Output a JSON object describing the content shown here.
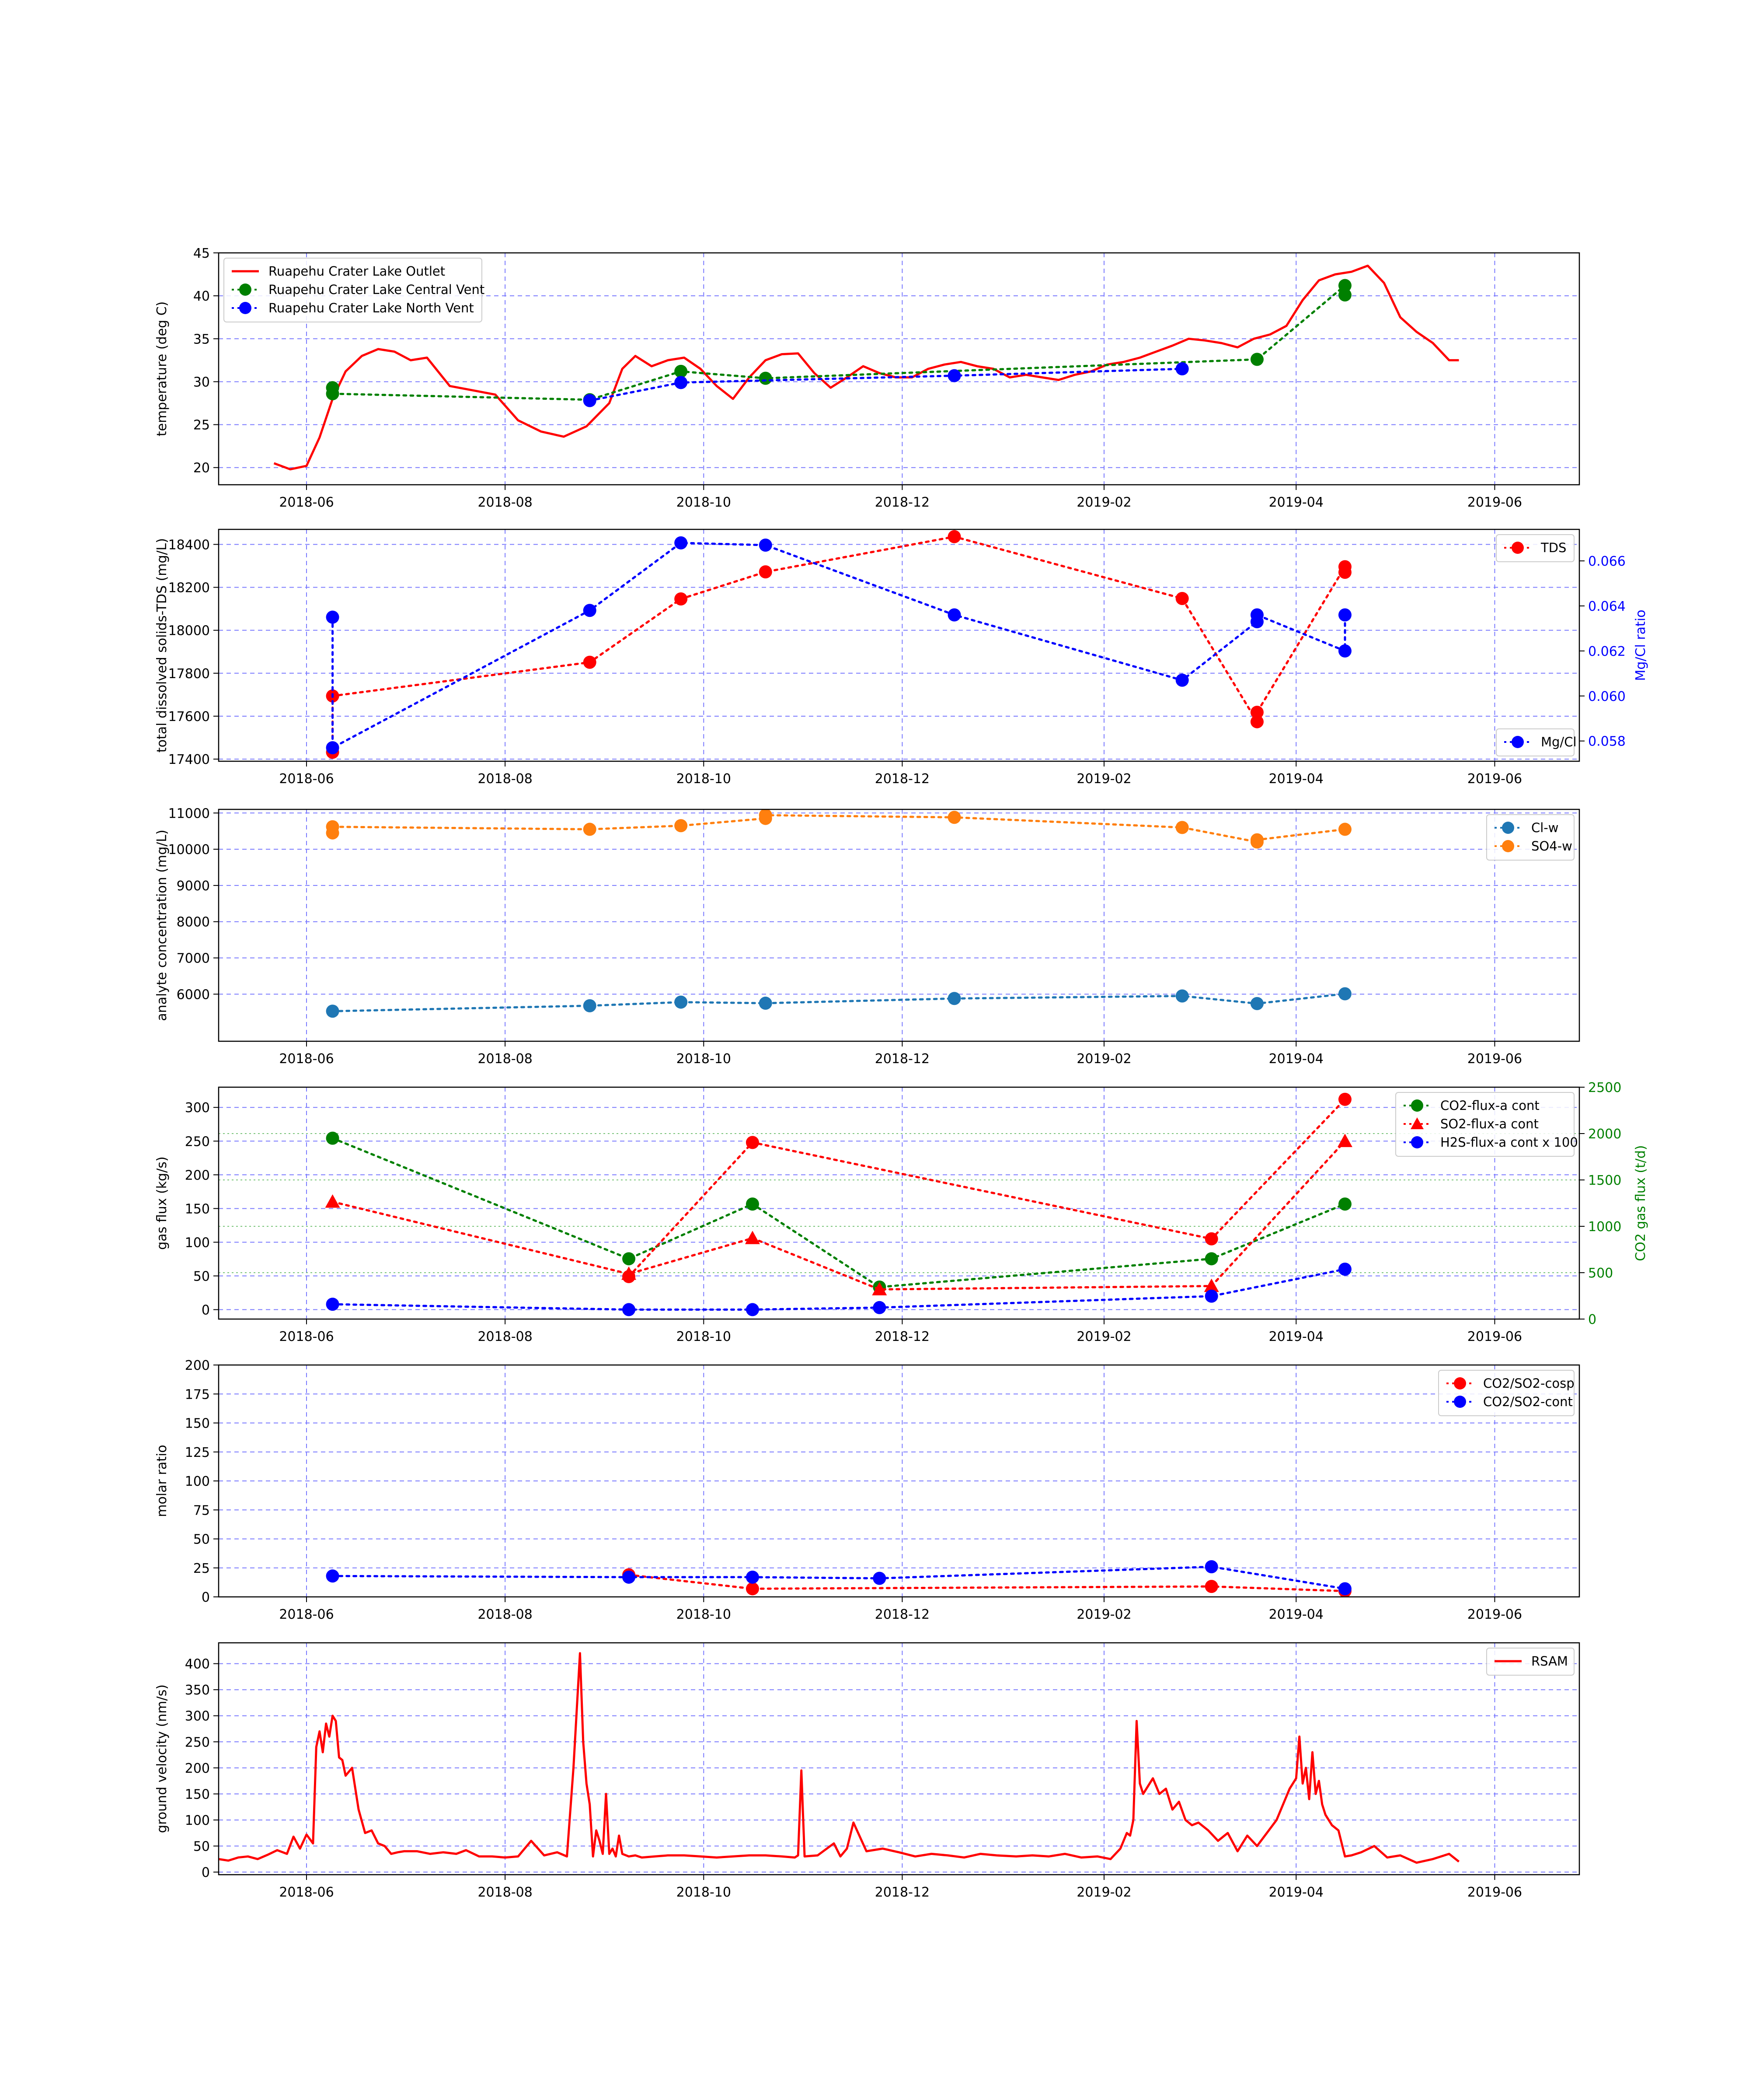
{
  "figure": {
    "x_ticks": [
      "2018-06",
      "2018-08",
      "2018-10",
      "2018-12",
      "2019-02",
      "2019-04",
      "2019-06"
    ]
  },
  "chart_data": [
    {
      "type": "line",
      "ylabel": "temperature (deg C)",
      "ylim": [
        18,
        45
      ],
      "yticks": [
        20,
        25,
        30,
        35,
        40,
        45
      ],
      "xlim": [
        "2018-05-05",
        "2019-06-27"
      ],
      "grid": true,
      "legend": "top-left",
      "series": [
        {
          "name": "Ruapehu Crater Lake Outlet",
          "style": "line",
          "color": "#ff0000",
          "x": [
            "2018-05-22",
            "2018-05-27",
            "2018-06-01",
            "2018-06-05",
            "2018-06-09",
            "2018-06-13",
            "2018-06-18",
            "2018-06-23",
            "2018-06-28",
            "2018-07-03",
            "2018-07-08",
            "2018-07-15",
            "2018-07-22",
            "2018-07-29",
            "2018-08-05",
            "2018-08-12",
            "2018-08-19",
            "2018-08-26",
            "2018-09-02",
            "2018-09-06",
            "2018-09-10",
            "2018-09-15",
            "2018-09-20",
            "2018-09-25",
            "2018-09-30",
            "2018-10-05",
            "2018-10-10",
            "2018-10-15",
            "2018-10-20",
            "2018-10-25",
            "2018-10-30",
            "2018-11-04",
            "2018-11-09",
            "2018-11-14",
            "2018-11-19",
            "2018-11-24",
            "2018-11-29",
            "2018-12-04",
            "2018-12-09",
            "2018-12-14",
            "2018-12-19",
            "2018-12-24",
            "2018-12-29",
            "2019-01-03",
            "2019-01-08",
            "2019-01-13",
            "2019-01-18",
            "2019-01-23",
            "2019-01-28",
            "2019-02-02",
            "2019-02-07",
            "2019-02-12",
            "2019-02-17",
            "2019-02-22",
            "2019-02-27",
            "2019-03-04",
            "2019-03-09",
            "2019-03-14",
            "2019-03-19",
            "2019-03-24",
            "2019-03-29",
            "2019-04-03",
            "2019-04-08",
            "2019-04-13",
            "2019-04-18",
            "2019-04-23",
            "2019-04-28",
            "2019-05-03",
            "2019-05-08",
            "2019-05-13",
            "2019-05-18",
            "2019-05-21"
          ],
          "y": [
            20.5,
            19.8,
            20.2,
            23.5,
            28.0,
            31.2,
            33.0,
            33.8,
            33.5,
            32.5,
            32.8,
            29.5,
            29.0,
            28.5,
            25.5,
            24.2,
            23.6,
            24.8,
            27.5,
            31.5,
            33.0,
            31.8,
            32.5,
            32.8,
            31.5,
            29.5,
            28.0,
            30.5,
            32.5,
            33.2,
            33.3,
            31.0,
            29.3,
            30.5,
            31.8,
            31.0,
            30.5,
            30.5,
            31.5,
            32.0,
            32.3,
            31.8,
            31.5,
            30.5,
            30.8,
            30.5,
            30.2,
            30.8,
            31.2,
            32.0,
            32.3,
            32.8,
            33.5,
            34.2,
            35.0,
            34.8,
            34.5,
            34.0,
            35.0,
            35.5,
            36.5,
            39.5,
            41.8,
            42.5,
            42.8,
            43.5,
            41.5,
            37.5,
            35.8,
            34.5,
            32.5,
            32.5
          ]
        },
        {
          "name": "Ruapehu Crater Lake Central Vent",
          "style": "dotted-markers",
          "color": "#008000",
          "x": [
            "2018-06-09",
            "2018-06-09",
            "2018-08-27",
            "2018-09-24",
            "2018-10-20",
            "2019-03-20",
            "2019-04-16",
            "2019-04-16"
          ],
          "y": [
            29.3,
            28.6,
            27.9,
            31.2,
            30.4,
            32.6,
            41.2,
            40.1
          ]
        },
        {
          "name": "Ruapehu Crater Lake North Vent",
          "style": "dotted-markers",
          "color": "#0000ff",
          "x": [
            "2018-08-27",
            "2018-09-24",
            "2018-12-17",
            "2019-02-25"
          ],
          "y": [
            27.8,
            29.9,
            30.7,
            31.5
          ]
        }
      ]
    },
    {
      "type": "line",
      "ylabel": "total dissolved solids-TDS (mg/L)",
      "y2label": "Mg/Cl ratio",
      "ylim": [
        17390,
        18470
      ],
      "yticks": [
        17400,
        17600,
        17800,
        18000,
        18200,
        18400
      ],
      "y2lim": [
        0.0571,
        0.0674
      ],
      "y2ticks": [
        0.058,
        0.06,
        0.062,
        0.064,
        0.066
      ],
      "y2ticklabels": [
        "0.058",
        "0.060",
        "0.062",
        "0.064",
        "0.066"
      ],
      "grid": true,
      "series": [
        {
          "name": "TDS",
          "axis": "left",
          "color": "#ff0000",
          "legend": "top-right",
          "x": [
            "2018-06-09",
            "2018-06-09",
            "2018-08-27",
            "2018-09-24",
            "2018-10-20",
            "2018-12-17",
            "2019-02-25",
            "2019-03-20",
            "2019-03-20",
            "2019-04-16",
            "2019-04-16"
          ],
          "y": [
            17432,
            17694,
            17851,
            18146,
            18272,
            18436,
            18148,
            17574,
            17618,
            18296,
            18270
          ]
        },
        {
          "name": "Mg/Cl",
          "axis": "right",
          "color": "#0000ff",
          "legend": "bottom-right",
          "x": [
            "2018-06-09",
            "2018-06-09",
            "2018-08-27",
            "2018-09-24",
            "2018-10-20",
            "2018-12-17",
            "2019-02-25",
            "2019-03-20",
            "2019-03-20",
            "2019-04-16",
            "2019-04-16"
          ],
          "y": [
            0.0635,
            0.0577,
            0.0638,
            0.0668,
            0.0667,
            0.0636,
            0.0607,
            0.0633,
            0.0636,
            0.062,
            0.0636
          ]
        }
      ]
    },
    {
      "type": "scatter",
      "ylabel": "analyte concentration (mg/L)",
      "ylim": [
        4700,
        11100
      ],
      "yticks": [
        6000,
        7000,
        8000,
        9000,
        10000,
        11000
      ],
      "grid": true,
      "legend": "top-right",
      "series": [
        {
          "name": "Cl-w",
          "color": "#1f77b4",
          "x": [
            "2018-06-09",
            "2018-08-27",
            "2018-09-24",
            "2018-10-20",
            "2018-12-17",
            "2019-02-25",
            "2019-03-20",
            "2019-04-16"
          ],
          "y": [
            5530,
            5680,
            5780,
            5750,
            5880,
            5950,
            5740,
            6010
          ]
        },
        {
          "name": "SO4-w",
          "color": "#ff7f0e",
          "x": [
            "2018-06-09",
            "2018-06-09",
            "2018-08-27",
            "2018-09-24",
            "2018-10-20",
            "2018-10-20",
            "2018-12-17",
            "2019-02-25",
            "2019-03-20",
            "2019-03-20",
            "2019-04-16"
          ],
          "y": [
            10450,
            10620,
            10550,
            10650,
            10850,
            10940,
            10880,
            10600,
            10200,
            10260,
            10550
          ]
        }
      ]
    },
    {
      "type": "line",
      "ylabel": "gas flux (kg/s)",
      "y2label": "CO2 gas flux (t/d)",
      "ylim": [
        -14,
        330
      ],
      "yticks": [
        0,
        50,
        100,
        150,
        200,
        250,
        300
      ],
      "y2lim": [
        0,
        2500
      ],
      "y2ticks": [
        0,
        500,
        1000,
        1500,
        2000,
        2500
      ],
      "grid": true,
      "legend": "top-right",
      "series": [
        {
          "name": "CO2-flux-a cont",
          "axis": "right",
          "marker": "circle",
          "color": "#008000",
          "x": [
            "2018-06-09",
            "2018-09-08",
            "2018-10-16",
            "2018-11-24",
            "2019-03-06",
            "2019-04-16"
          ],
          "y": [
            1950,
            650,
            1240,
            345,
            650,
            1240
          ]
        },
        {
          "name": "SO2-flux-a cont",
          "axis": "left",
          "marker": "triangle",
          "color": "#ff0000",
          "x": [
            "2018-06-09",
            "2018-09-08",
            "2018-10-16",
            "2018-11-24",
            "2019-03-06",
            "2019-04-16"
          ],
          "y": [
            160,
            53,
            106,
            30,
            35,
            250
          ]
        },
        {
          "name": "",
          "axis": "left",
          "marker": "circle",
          "color": "#ff0000",
          "x": [
            "2018-09-08",
            "2018-10-16",
            "2019-03-06",
            "2019-04-16"
          ],
          "y": [
            49,
            248,
            105,
            312
          ]
        },
        {
          "name": "H2S-flux-a cont x 100",
          "axis": "left",
          "marker": "circle",
          "color": "#0000ff",
          "x": [
            "2018-06-09",
            "2018-09-08",
            "2018-10-16",
            "2018-11-24",
            "2019-03-06",
            "2019-04-16"
          ],
          "y": [
            8,
            0,
            0,
            3,
            20,
            60
          ]
        }
      ]
    },
    {
      "type": "line",
      "ylabel": "molar ratio",
      "ylim": [
        0,
        200
      ],
      "yticks": [
        0,
        25,
        50,
        75,
        100,
        125,
        150,
        175,
        200
      ],
      "grid": true,
      "legend": "top-right",
      "series": [
        {
          "name": "CO2/SO2-cosp",
          "color": "#ff0000",
          "x": [
            "2018-09-08",
            "2018-10-16",
            "2019-03-06",
            "2019-04-16"
          ],
          "y": [
            19,
            7,
            9,
            5
          ]
        },
        {
          "name": "CO2/SO2-cont",
          "color": "#0000ff",
          "x": [
            "2018-06-09",
            "2018-09-08",
            "2018-10-16",
            "2018-11-24",
            "2019-03-06",
            "2019-04-16"
          ],
          "y": [
            18,
            17,
            17,
            16,
            26,
            7
          ]
        }
      ]
    },
    {
      "type": "line",
      "ylabel": "ground velocity (nm/s)",
      "ylim": [
        -5,
        440
      ],
      "yticks": [
        0,
        50,
        100,
        150,
        200,
        250,
        300,
        350,
        400
      ],
      "grid": true,
      "legend": "top-right",
      "series": [
        {
          "name": "RSAM",
          "color": "#ff0000",
          "x": [
            "2018-05-05",
            "2018-05-08",
            "2018-05-11",
            "2018-05-14",
            "2018-05-17",
            "2018-05-20",
            "2018-05-23",
            "2018-05-26",
            "2018-05-28",
            "2018-05-30",
            "2018-06-01",
            "2018-06-03",
            "2018-06-04",
            "2018-06-05",
            "2018-06-06",
            "2018-06-07",
            "2018-06-08",
            "2018-06-09",
            "2018-06-10",
            "2018-06-11",
            "2018-06-12",
            "2018-06-13",
            "2018-06-15",
            "2018-06-17",
            "2018-06-19",
            "2018-06-21",
            "2018-06-23",
            "2018-06-25",
            "2018-06-27",
            "2018-06-29",
            "2018-07-01",
            "2018-07-05",
            "2018-07-09",
            "2018-07-13",
            "2018-07-17",
            "2018-07-20",
            "2018-07-24",
            "2018-07-28",
            "2018-08-01",
            "2018-08-05",
            "2018-08-09",
            "2018-08-13",
            "2018-08-17",
            "2018-08-20",
            "2018-08-22",
            "2018-08-24",
            "2018-08-25",
            "2018-08-26",
            "2018-08-27",
            "2018-08-28",
            "2018-08-29",
            "2018-08-30",
            "2018-08-31",
            "2018-09-01",
            "2018-09-02",
            "2018-09-03",
            "2018-09-04",
            "2018-09-05",
            "2018-09-06",
            "2018-09-08",
            "2018-09-10",
            "2018-09-12",
            "2018-09-16",
            "2018-09-20",
            "2018-09-25",
            "2018-09-30",
            "2018-10-05",
            "2018-10-10",
            "2018-10-15",
            "2018-10-20",
            "2018-10-25",
            "2018-10-29",
            "2018-10-30",
            "2018-10-31",
            "2018-11-01",
            "2018-11-05",
            "2018-11-10",
            "2018-11-12",
            "2018-11-14",
            "2018-11-16",
            "2018-11-20",
            "2018-11-25",
            "2018-11-30",
            "2018-12-05",
            "2018-12-10",
            "2018-12-15",
            "2018-12-20",
            "2018-12-25",
            "2018-12-30",
            "2019-01-05",
            "2019-01-10",
            "2019-01-15",
            "2019-01-20",
            "2019-01-25",
            "2019-01-30",
            "2019-02-03",
            "2019-02-06",
            "2019-02-08",
            "2019-02-09",
            "2019-02-10",
            "2019-02-11",
            "2019-02-12",
            "2019-02-13",
            "2019-02-14",
            "2019-02-16",
            "2019-02-18",
            "2019-02-20",
            "2019-02-22",
            "2019-02-24",
            "2019-02-26",
            "2019-02-28",
            "2019-03-02",
            "2019-03-05",
            "2019-03-08",
            "2019-03-11",
            "2019-03-14",
            "2019-03-17",
            "2019-03-20",
            "2019-03-23",
            "2019-03-26",
            "2019-03-28",
            "2019-03-30",
            "2019-04-01",
            "2019-04-02",
            "2019-04-03",
            "2019-04-04",
            "2019-04-05",
            "2019-04-06",
            "2019-04-07",
            "2019-04-08",
            "2019-04-09",
            "2019-04-10",
            "2019-04-12",
            "2019-04-14",
            "2019-04-16",
            "2019-04-18",
            "2019-04-21",
            "2019-04-25",
            "2019-04-29",
            "2019-05-03",
            "2019-05-08",
            "2019-05-13",
            "2019-05-18",
            "2019-05-21"
          ],
          "y": [
            25,
            22,
            28,
            30,
            25,
            33,
            42,
            35,
            68,
            45,
            72,
            55,
            240,
            270,
            230,
            285,
            260,
            300,
            290,
            220,
            215,
            185,
            200,
            120,
            75,
            80,
            55,
            50,
            35,
            38,
            40,
            40,
            35,
            38,
            35,
            42,
            30,
            30,
            28,
            30,
            60,
            32,
            38,
            30,
            200,
            420,
            250,
            170,
            130,
            30,
            80,
            60,
            35,
            150,
            35,
            45,
            30,
            70,
            35,
            30,
            32,
            28,
            30,
            32,
            32,
            30,
            28,
            30,
            32,
            32,
            30,
            28,
            32,
            195,
            30,
            32,
            55,
            30,
            45,
            95,
            40,
            45,
            38,
            30,
            35,
            32,
            28,
            35,
            32,
            30,
            32,
            30,
            35,
            28,
            30,
            25,
            45,
            75,
            70,
            100,
            290,
            170,
            150,
            160,
            180,
            150,
            160,
            120,
            135,
            100,
            90,
            95,
            80,
            60,
            75,
            40,
            70,
            50,
            75,
            100,
            130,
            160,
            180,
            260,
            170,
            200,
            140,
            230,
            150,
            175,
            130,
            110,
            90,
            80,
            30,
            32,
            38,
            50,
            28,
            32,
            18,
            25,
            35,
            20
          ]
        }
      ]
    }
  ]
}
